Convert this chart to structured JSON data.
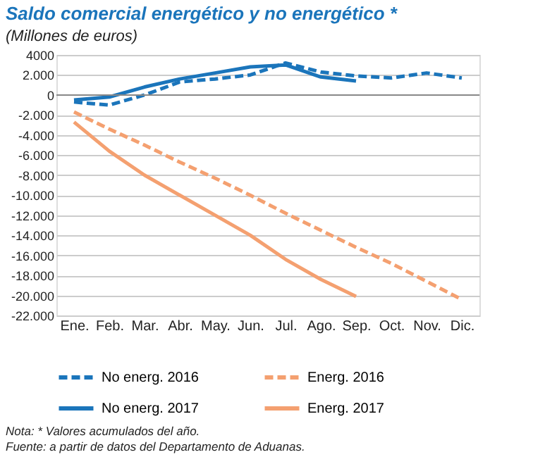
{
  "chart_data": {
    "type": "line",
    "title": "Saldo comercial energético y no energético *",
    "subtitle": "(Millones de euros)",
    "categories": [
      "Ene.",
      "Feb.",
      "Mar.",
      "Abr.",
      "May.",
      "Jun.",
      "Jul.",
      "Ago.",
      "Sep.",
      "Oct.",
      "Nov.",
      "Dic."
    ],
    "series": [
      {
        "name": "No energ. 2016",
        "color": "#1b75bb",
        "line_style": "dashed",
        "values": [
          -700,
          -1000,
          0,
          1300,
          1600,
          2000,
          3200,
          2300,
          1900,
          1700,
          2200,
          1700
        ]
      },
      {
        "name": "Energ. 2016",
        "color": "#f4a070",
        "line_style": "dashed",
        "values": [
          -1700,
          -3400,
          -5000,
          -6700,
          -8300,
          -10000,
          -11800,
          -13500,
          -15200,
          -16800,
          -18600,
          -20400
        ]
      },
      {
        "name": "No energ. 2017",
        "color": "#1b75bb",
        "line_style": "solid",
        "values": [
          -500,
          -200,
          800,
          1600,
          2200,
          2800,
          3000,
          1800,
          1400,
          null,
          null,
          null
        ]
      },
      {
        "name": "Energ. 2017",
        "color": "#f4a070",
        "line_style": "solid",
        "values": [
          -2700,
          -5600,
          -8000,
          -10000,
          -12000,
          -14000,
          -16400,
          -18400,
          -20100,
          null,
          null,
          null
        ]
      }
    ],
    "ylim": [
      -22000,
      4000
    ],
    "yticks": [
      {
        "value": 4000,
        "label": "4000"
      },
      {
        "value": 2000,
        "label": "2.000"
      },
      0,
      {
        "value": -2000,
        "label": "-2.000"
      },
      {
        "value": -4000,
        "label": "-4.000"
      },
      {
        "value": -6000,
        "label": "-6.000"
      },
      {
        "value": -8000,
        "label": "-8.000"
      },
      {
        "value": -10000,
        "label": "-10.000"
      },
      {
        "value": -12000,
        "label": "-12.000"
      },
      {
        "value": -14000,
        "label": "-14.000"
      },
      {
        "value": -16000,
        "label": "-16.000"
      },
      {
        "value": -18000,
        "label": "-18.000"
      },
      {
        "value": -20000,
        "label": "-20.000"
      },
      {
        "value": -22000,
        "label": "-22.000"
      }
    ],
    "grid": "y",
    "legend": "bottom",
    "marker": "none",
    "annotations": [
      "Nota: * Valores acumulados del año.",
      "Fuente: a partir de datos del Departamento de Aduanas."
    ]
  }
}
